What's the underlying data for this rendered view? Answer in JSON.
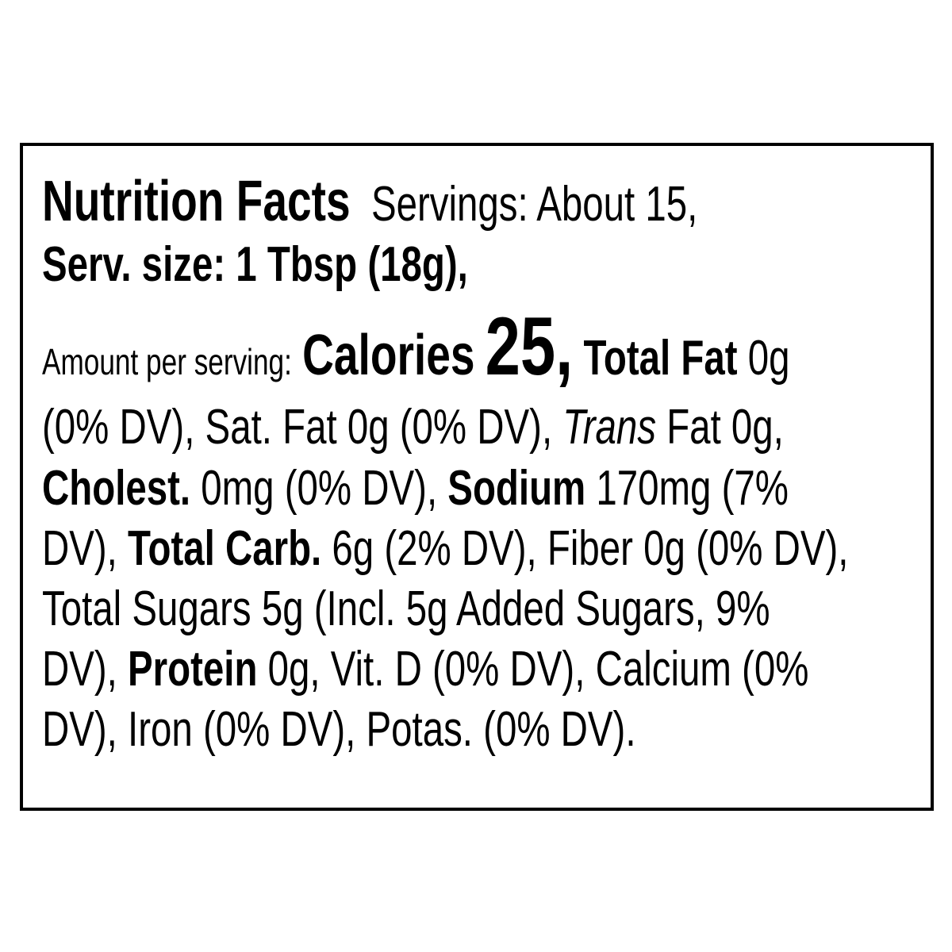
{
  "label": {
    "title": "Nutrition Facts",
    "servings": "Servings: About 15,",
    "serving_size": "Serv. size: 1 Tbsp (18g),",
    "amount_per_serving": "Amount per serving:",
    "calories_label": "Calories",
    "calories_value": "25,",
    "total_fat_label": "Total Fat",
    "total_fat_value": " 0g",
    "line4_a": "(0% DV), Sat. Fat 0g (0% DV), ",
    "trans_label": "Trans",
    "line4_b": " Fat 0g,",
    "cholest_label": "Cholest.",
    "cholest_value": " 0mg (0% DV), ",
    "sodium_label": "Sodium",
    "sodium_value": " 170mg (7%",
    "line6_a": "DV), ",
    "total_carb_label": "Total Carb.",
    "total_carb_value": " 6g (2% DV), Fiber 0g (0% DV),",
    "line7": "Total Sugars 5g (Incl. 5g Added Sugars, 9%",
    "line8_a": "DV), ",
    "protein_label": "Protein",
    "protein_value": " 0g, Vit. D (0% DV), Calcium (0%",
    "line9": "DV), Iron (0% DV), Potas. (0% DV)."
  }
}
